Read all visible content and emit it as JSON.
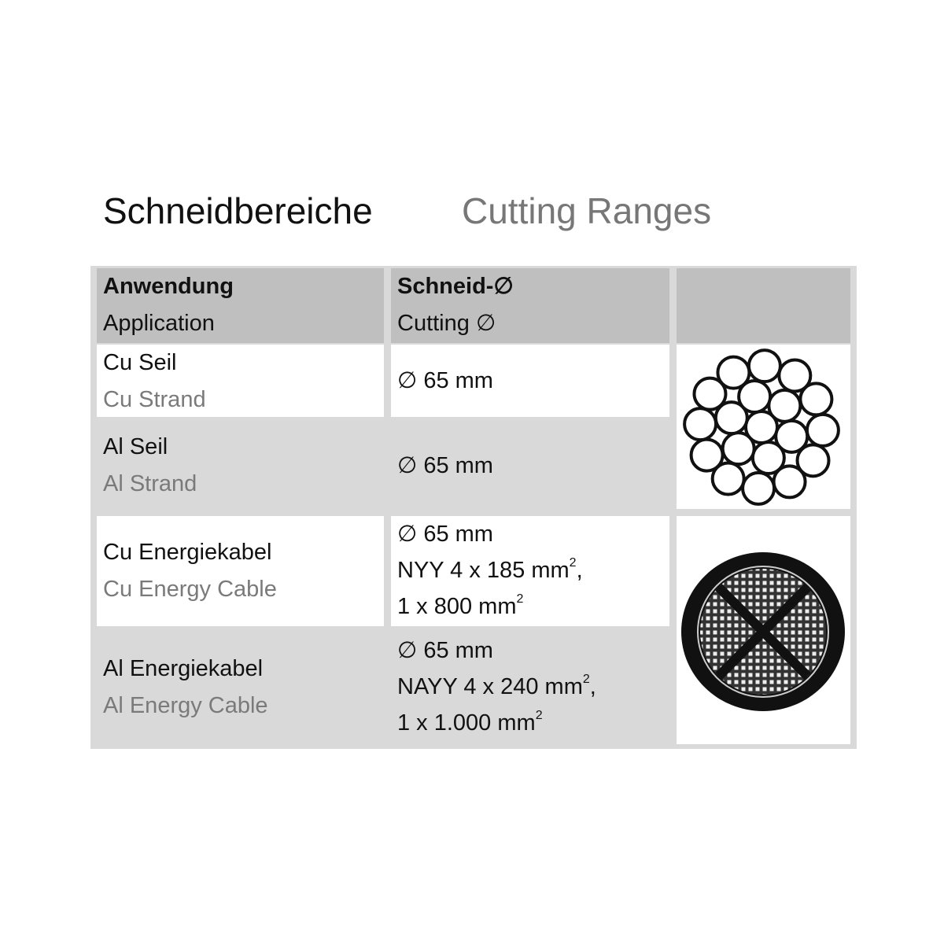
{
  "title": {
    "de": "Schneidbereiche",
    "en": "Cutting Ranges"
  },
  "header": {
    "col1_de": "Anwendung",
    "col1_en": "Application",
    "col2_de": "Schneid-∅",
    "col2_en": "Cutting ∅"
  },
  "rows": [
    {
      "de": "Cu Seil",
      "en": "Cu Strand",
      "cut": [
        "∅ 65 mm"
      ]
    },
    {
      "de": "Al Seil",
      "en": "Al Strand",
      "cut": [
        "∅ 65 mm"
      ]
    },
    {
      "de": "Cu Energiekabel",
      "en": "Cu Energy Cable",
      "cut": [
        "∅ 65 mm"
      ],
      "spec1": "NYY 4 x 185 mm",
      "spec1_sup": "2",
      "spec1_tail": ",",
      "spec2": "1 x 800 mm",
      "spec2_sup": "2"
    },
    {
      "de": "Al Energiekabel",
      "en": "Al Energy Cable",
      "cut": [
        "∅ 65 mm"
      ],
      "spec1": "NAYY 4 x 240 mm",
      "spec1_sup": "2",
      "spec1_tail": ",",
      "spec2": "1 x 1.000 mm",
      "spec2_sup": "2"
    }
  ],
  "images": [
    "strand-cross-section-icon",
    "energy-cable-cross-section-icon"
  ],
  "colors": {
    "header_bg": "#bfbfbf",
    "row_gray": "#d9d9d9",
    "muted_text": "#7a7a7a"
  }
}
